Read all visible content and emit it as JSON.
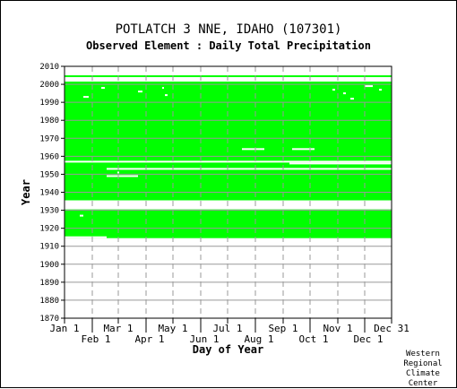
{
  "header": {
    "title": "POTLATCH 3 NNE, IDAHO   (107301)",
    "subtitle": "Observed Element : Daily Total Precipitation"
  },
  "credit": {
    "line1": "Western",
    "line2": "Regional",
    "line3": "Climate",
    "line4": "Center"
  },
  "chart_data": {
    "type": "heatmap",
    "title": "POTLATCH 3 NNE, IDAHO   (107301)",
    "subtitle": "Observed Element : Daily Total Precipitation",
    "xlabel": "Day of Year",
    "ylabel": "Year",
    "xlim": [
      1,
      366
    ],
    "ylim": [
      1870,
      2010
    ],
    "x_ticks_top_row": [
      {
        "label": "Jan 1",
        "day": 1
      },
      {
        "label": "Mar 1",
        "day": 61
      },
      {
        "label": "May 1",
        "day": 122
      },
      {
        "label": "Jul 1",
        "day": 183
      },
      {
        "label": "Sep 1",
        "day": 245
      },
      {
        "label": "Nov 1",
        "day": 306
      },
      {
        "label": "Dec 31",
        "day": 366
      }
    ],
    "x_ticks_bottom_row": [
      {
        "label": "Feb 1",
        "day": 32
      },
      {
        "label": "Apr 1",
        "day": 92
      },
      {
        "label": "Jun 1",
        "day": 153
      },
      {
        "label": "Aug 1",
        "day": 214
      },
      {
        "label": "Oct 1",
        "day": 275
      },
      {
        "label": "Dec 1",
        "day": 336
      }
    ],
    "y_ticks": [
      1870,
      1880,
      1890,
      1900,
      1910,
      1920,
      1930,
      1940,
      1950,
      1960,
      1970,
      1980,
      1990,
      2000,
      2010
    ],
    "grid": true,
    "legend": "none",
    "colors": {
      "observed": "#00ff00",
      "background": "#ffffff",
      "grid": "#999999",
      "axis": "#000000"
    },
    "coverage_blocks": [
      {
        "year_from": 1914.5,
        "year_to": 1930.5,
        "day_from": 1,
        "day_to": 366
      },
      {
        "year_from": 1935.5,
        "year_to": 2001.5,
        "day_from": 1,
        "day_to": 366
      },
      {
        "year_from": 2004.5,
        "year_to": 2005.0,
        "day_from": 1,
        "day_to": 15
      },
      {
        "year_from": 2004.5,
        "year_to": 2005.0,
        "day_from": 15,
        "day_to": 366
      }
    ],
    "missing_segments": [
      {
        "year": 1931,
        "day_from": 1,
        "day_to": 366
      },
      {
        "year": 1932,
        "day_from": 1,
        "day_to": 366
      },
      {
        "year": 1933,
        "day_from": 1,
        "day_to": 366
      },
      {
        "year": 1934,
        "day_from": 1,
        "day_to": 366
      },
      {
        "year": 1935,
        "day_from": 1,
        "day_to": 239
      },
      {
        "year": 1957,
        "day_from": 1,
        "day_to": 366
      },
      {
        "year": 1953,
        "day_from": 48,
        "day_to": 366
      },
      {
        "year": 1949,
        "day_from": 48,
        "day_to": 83
      },
      {
        "year": 1951,
        "day_from": 60,
        "day_to": 62
      },
      {
        "year": 1964,
        "day_from": 199,
        "day_to": 224
      },
      {
        "year": 1964,
        "day_from": 255,
        "day_to": 280
      },
      {
        "year": 1915,
        "day_from": 1,
        "day_to": 48
      },
      {
        "year": 1956,
        "day_from": 252,
        "day_to": 370
      },
      {
        "year": 1927,
        "day_from": 18,
        "day_to": 22
      },
      {
        "year": 1993,
        "day_from": 22,
        "day_to": 28
      },
      {
        "year": 1998,
        "day_from": 42,
        "day_to": 46
      },
      {
        "year": 1996,
        "day_from": 83,
        "day_to": 88
      },
      {
        "year": 1994,
        "day_from": 113,
        "day_to": 116
      },
      {
        "year": 1998,
        "day_from": 110,
        "day_to": 112
      },
      {
        "year": 1992,
        "day_from": 320,
        "day_to": 324
      },
      {
        "year": 1995,
        "day_from": 312,
        "day_to": 315
      },
      {
        "year": 1997,
        "day_from": 300,
        "day_to": 303
      },
      {
        "year": 1999,
        "day_from": 336,
        "day_to": 345
      },
      {
        "year": 1997,
        "day_from": 352,
        "day_to": 355
      }
    ]
  }
}
